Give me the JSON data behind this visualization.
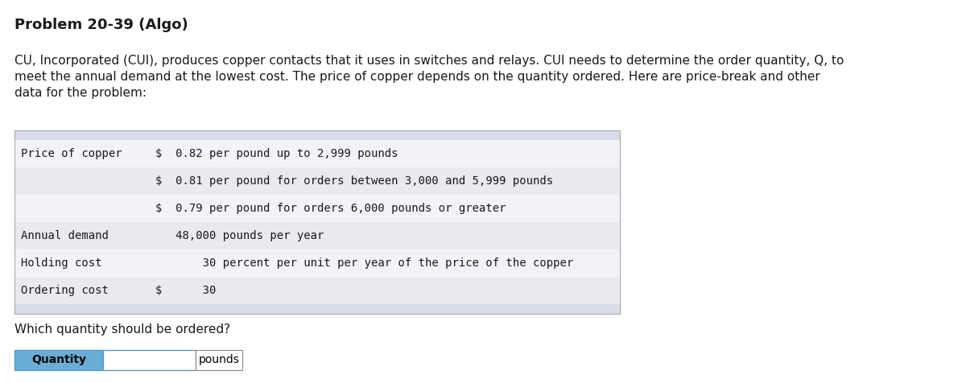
{
  "title": "Problem 20-39 (Algo)",
  "para_line1": "CU, Incorporated (CUI), produces copper contacts that it uses in switches and relays. CUI needs to determine the order quantity, Q, to",
  "para_line2": "meet the annual demand at the lowest cost. The price of copper depends on the quantity ordered. Here are price-break and other",
  "para_line3": "data for the problem:",
  "table_col1": [
    "Price of copper",
    "",
    "",
    "Annual demand",
    "Holding cost",
    "Ordering cost"
  ],
  "table_col2": [
    "$  0.82 per pound up to 2,999 pounds",
    "$  0.81 per pound for orders between 3,000 and 5,999 pounds",
    "$  0.79 per pound for orders 6,000 pounds or greater",
    "   48,000 pounds per year",
    "       30 percent per unit per year of the price of the copper",
    "$      30"
  ],
  "table_header_bg": "#d8dce8",
  "table_row_bg_white": "#f2f3f7",
  "table_row_bg_light": "#e8eaf0",
  "question": "Which quantity should be ordered?",
  "label_quantity": "Quantity",
  "label_pounds": "pounds",
  "label_bg": "#6aaed6",
  "label_border": "#5599cc",
  "input_bg": "#ffffff",
  "input_border": "#5599cc",
  "bg_color": "#ffffff",
  "font_color": "#1a1a1a",
  "title_fontsize": 13,
  "body_fontsize": 11,
  "table_fontsize": 10,
  "question_fontsize": 11
}
